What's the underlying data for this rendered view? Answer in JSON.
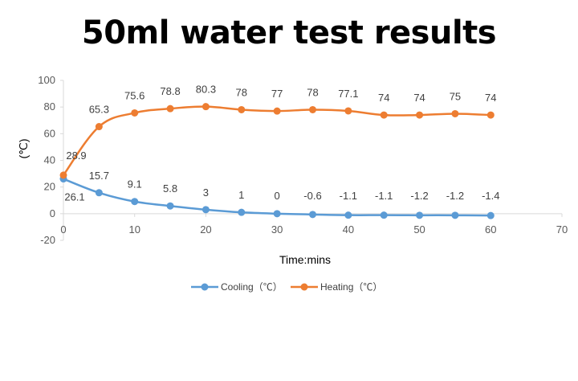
{
  "title": "50ml water test results",
  "chart_data": {
    "type": "line",
    "title": "50ml water test results",
    "xlabel": "Time:mins",
    "ylabel": "(℃)",
    "xlim": [
      0,
      70
    ],
    "ylim": [
      -20,
      100
    ],
    "x_ticks": [
      0,
      10,
      20,
      30,
      40,
      50,
      60,
      70
    ],
    "y_ticks": [
      -20,
      0,
      20,
      40,
      60,
      80,
      100
    ],
    "grid": false,
    "legend_position": "bottom",
    "x": [
      0,
      5,
      10,
      15,
      20,
      25,
      30,
      35,
      40,
      45,
      50,
      55,
      60
    ],
    "series": [
      {
        "name": "Cooling（℃）",
        "color": "#5b9bd5",
        "values": [
          26.1,
          15.7,
          9.1,
          5.8,
          3,
          1,
          0,
          -0.6,
          -1.1,
          -1.1,
          -1.2,
          -1.2,
          -1.4
        ],
        "labels": [
          "26.1",
          "15.7",
          "9.1",
          "5.8",
          "3",
          "1",
          "0",
          "-0.6",
          "-1.1",
          "-1.1",
          "-1.2",
          "-1.2",
          "-1.4"
        ]
      },
      {
        "name": "Heating（℃）",
        "color": "#ed7d31",
        "values": [
          28.9,
          65.3,
          75.6,
          78.8,
          80.3,
          78,
          77,
          78,
          77.1,
          74,
          74,
          75,
          74
        ],
        "labels": [
          "28.9",
          "65.3",
          "75.6",
          "78.8",
          "80.3",
          "78",
          "77",
          "78",
          "77.1",
          "74",
          "74",
          "75",
          "74"
        ]
      }
    ]
  }
}
